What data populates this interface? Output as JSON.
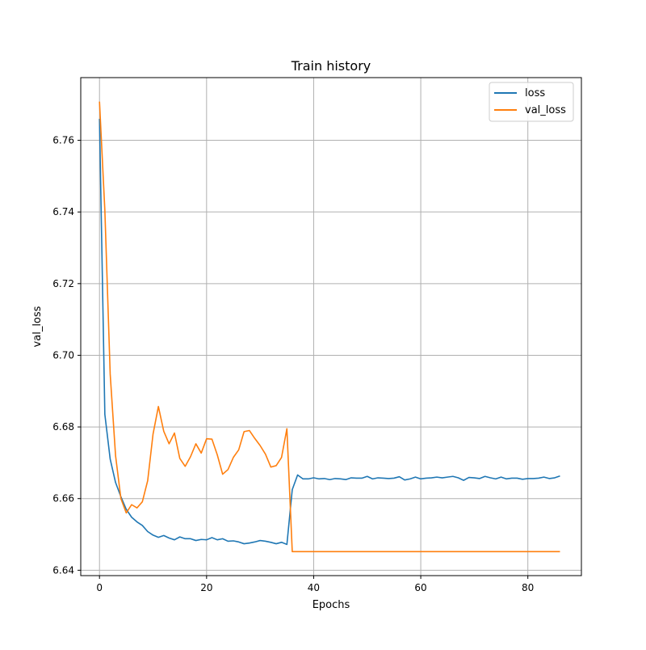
{
  "chart_data": {
    "type": "line",
    "title": "Train history",
    "xlabel": "Epochs",
    "ylabel": "val_loss",
    "xlim": [
      -3.5,
      90
    ],
    "ylim": [
      6.6385,
      6.7775
    ],
    "xticks": [
      0,
      20,
      40,
      60,
      80
    ],
    "yticks": [
      6.64,
      6.66,
      6.68,
      6.7,
      6.72,
      6.74,
      6.76
    ],
    "ytick_labels": [
      "6.64",
      "6.66",
      "6.68",
      "6.70",
      "6.72",
      "6.74",
      "6.76"
    ],
    "grid": true,
    "legend_position": "top-right",
    "series": [
      {
        "name": "loss",
        "color": "#1f77b4",
        "values": [
          6.766,
          6.6835,
          6.671,
          6.6645,
          6.6605,
          6.657,
          6.6548,
          6.6535,
          6.6525,
          6.6508,
          6.6498,
          6.6492,
          6.6497,
          6.649,
          6.6485,
          6.6493,
          6.6488,
          6.6488,
          6.6483,
          6.6486,
          6.6485,
          6.6491,
          6.6485,
          6.6488,
          6.6481,
          6.6482,
          6.6479,
          6.6474,
          6.6476,
          6.6479,
          6.6483,
          6.6481,
          6.6478,
          6.6474,
          6.6478,
          6.6472,
          6.6625,
          6.6666,
          6.6655,
          6.6655,
          6.6658,
          6.6655,
          6.6656,
          6.6653,
          6.6656,
          6.6655,
          6.6653,
          6.6658,
          6.6657,
          6.6657,
          6.6662,
          6.6655,
          6.6658,
          6.6657,
          6.6656,
          6.6657,
          6.6661,
          6.6652,
          6.6655,
          6.666,
          6.6655,
          6.6657,
          6.6658,
          6.666,
          6.6658,
          6.666,
          6.6662,
          6.6658,
          6.6651,
          6.6659,
          6.6658,
          6.6656,
          6.6662,
          6.6658,
          6.6655,
          6.666,
          6.6655,
          6.6657,
          6.6657,
          6.6654,
          6.6656,
          6.6656,
          6.6657,
          6.666,
          6.6656,
          6.6658,
          6.6663
        ]
      },
      {
        "name": "val_loss",
        "color": "#ff7f0e",
        "values": [
          6.7708,
          6.7405,
          6.6947,
          6.672,
          6.66,
          6.656,
          6.6583,
          6.6574,
          6.6591,
          6.665,
          6.678,
          6.6857,
          6.6788,
          6.6753,
          6.6783,
          6.6712,
          6.669,
          6.6717,
          6.6753,
          6.6727,
          6.6767,
          6.6766,
          6.6722,
          6.6668,
          6.6681,
          6.6715,
          6.6736,
          6.6787,
          6.679,
          6.6768,
          6.6748,
          6.6724,
          6.6688,
          6.6692,
          6.6715,
          6.6795,
          6.6452,
          6.6452,
          6.6452,
          6.6452,
          6.6452,
          6.6452,
          6.6452,
          6.6452,
          6.6452,
          6.6452,
          6.6452,
          6.6452,
          6.6452,
          6.6452,
          6.6452,
          6.6452,
          6.6452,
          6.6452,
          6.6452,
          6.6452,
          6.6452,
          6.6452,
          6.6452,
          6.6452,
          6.6452,
          6.6452,
          6.6452,
          6.6452,
          6.6452,
          6.6452,
          6.6452,
          6.6452,
          6.6452,
          6.6452,
          6.6452,
          6.6452,
          6.6452,
          6.6452,
          6.6452,
          6.6452,
          6.6452,
          6.6452,
          6.6452,
          6.6452,
          6.6452,
          6.6452,
          6.6452,
          6.6452,
          6.6452,
          6.6452,
          6.6452
        ]
      }
    ]
  }
}
